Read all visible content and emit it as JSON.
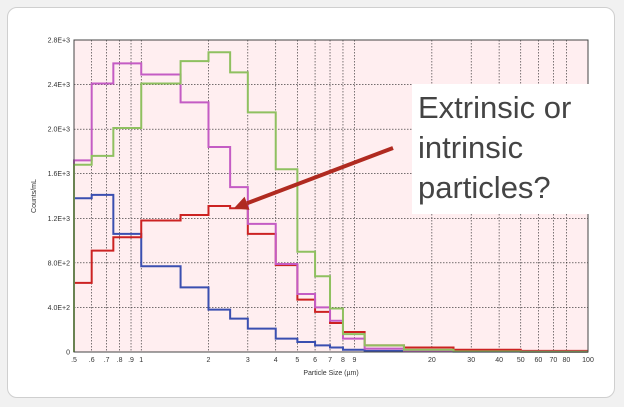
{
  "chart_data": {
    "type": "line",
    "step": true,
    "x_scale": "log",
    "xlabel": "Particle Size (µm)",
    "ylabel": "Counts/mL",
    "xlim": [
      0.5,
      100
    ],
    "ylim": [
      0,
      2800
    ],
    "grid": true,
    "legend": "none",
    "x_ticks": [
      0.5,
      0.6,
      0.7,
      0.8,
      0.9,
      1,
      2,
      3,
      4,
      5,
      6,
      7,
      8,
      9,
      20,
      30,
      40,
      50,
      60,
      70,
      80,
      100
    ],
    "x_tick_labels": [
      ".5",
      ".6",
      ".7",
      ".8",
      ".9",
      "1",
      "2",
      "3",
      "4",
      "5",
      "6",
      "7",
      "8",
      "9",
      "20",
      "30",
      "40",
      "50",
      "60",
      "70",
      "80",
      "100"
    ],
    "y_ticks": [
      0,
      400,
      800,
      1200,
      1600,
      2000,
      2400,
      2800
    ],
    "y_tick_labels": [
      "0",
      "4.0E+2",
      "8.0E+2",
      "1.2E+3",
      "1.6E+3",
      "2.0E+3",
      "2.4E+3",
      "2.8E+3"
    ],
    "bin_edges": [
      0.5,
      0.6,
      0.75,
      1.0,
      1.5,
      2.0,
      2.5,
      3.0,
      4.0,
      5.0,
      6.0,
      7.0,
      8.0,
      10.0,
      15.0,
      25.0,
      50.0,
      100.0
    ],
    "series": [
      {
        "color": "#3a4fb0",
        "values": [
          1380,
          1410,
          1060,
          770,
          580,
          380,
          300,
          210,
          120,
          90,
          60,
          40,
          20,
          10,
          5,
          3,
          2
        ]
      },
      {
        "color": "#cc2222",
        "values": [
          620,
          910,
          1030,
          1180,
          1230,
          1310,
          1290,
          1060,
          780,
          470,
          360,
          260,
          180,
          60,
          40,
          20,
          10
        ]
      },
      {
        "color": "#c45cc4",
        "values": [
          1720,
          2410,
          2590,
          2490,
          2240,
          1840,
          1480,
          1150,
          790,
          520,
          400,
          280,
          120,
          30,
          10,
          5,
          2
        ]
      },
      {
        "color": "#8fc060",
        "values": [
          1680,
          1760,
          2010,
          2410,
          2610,
          2690,
          2510,
          2150,
          1640,
          900,
          680,
          390,
          160,
          60,
          20,
          5,
          2
        ]
      }
    ],
    "annotation": {
      "lines": [
        "Extrinsic or",
        "intrinsic",
        "particles?"
      ],
      "arrow_color": "#b02a20",
      "points_to_x": 2.6,
      "points_to_y": 1290
    }
  }
}
